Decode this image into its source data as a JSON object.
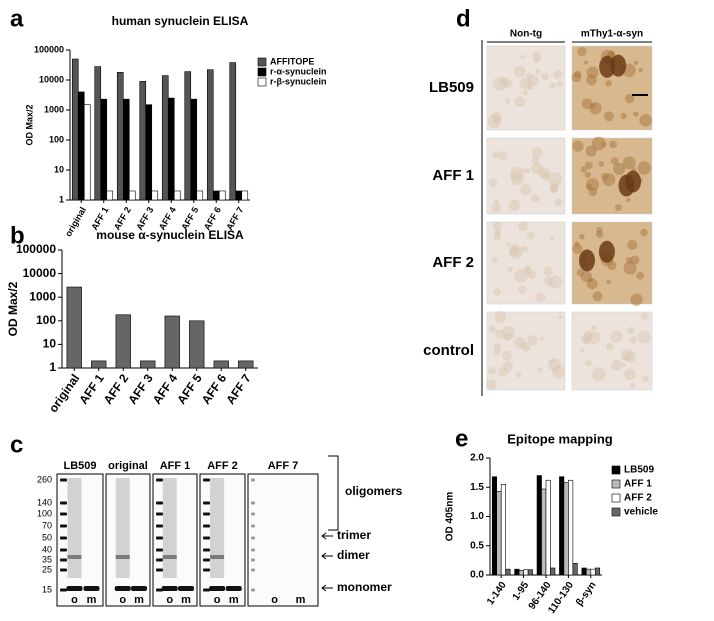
{
  "chart_data": [
    {
      "type": "bar",
      "panel": "a",
      "title": "human synuclein ELISA",
      "y_label": "OD Max/2",
      "log_scale": true,
      "categories": [
        "original",
        "AFF 1",
        "AFF 2",
        "AFF 3",
        "AFF 4",
        "AFF 5",
        "AFF 6",
        "AFF 7"
      ],
      "series": [
        {
          "name": "AFFITOPE",
          "color": "#555555",
          "values": [
            50000,
            28000,
            18000,
            9000,
            14000,
            19000,
            22000,
            38000
          ]
        },
        {
          "name": "r-α-synuclein",
          "color": "#000000",
          "values": [
            4000,
            2300,
            2300,
            1500,
            2500,
            2300,
            2,
            2
          ]
        },
        {
          "name": "r-β-synuclein",
          "color": "#ffffff",
          "values": [
            1500,
            2,
            2,
            2,
            2,
            2,
            2,
            2
          ]
        }
      ],
      "ylim": [
        1,
        100000
      ],
      "yticks": [
        1,
        10,
        100,
        1000,
        10000,
        100000
      ],
      "legend": "right"
    },
    {
      "type": "bar",
      "panel": "b",
      "title": "mouse α-synuclein ELISA",
      "y_label": "OD Max/2",
      "log_scale": true,
      "categories": [
        "original",
        "AFF 1",
        "AFF 2",
        "AFF 3",
        "AFF 4",
        "AFF 5",
        "AFF 6",
        "AFF 7"
      ],
      "series": [
        {
          "name": "",
          "color": "#666666",
          "values": [
            2700,
            2,
            180,
            2,
            160,
            100,
            2,
            2
          ]
        }
      ],
      "ylim": [
        1,
        100000
      ],
      "yticks": [
        1,
        10,
        100,
        1000,
        10000,
        100000
      ]
    },
    {
      "type": "bar",
      "panel": "e",
      "title": "Epitope mapping",
      "y_label": "OD 405nm",
      "log_scale": false,
      "categories": [
        "1-140",
        "1-95",
        "96-140",
        "110-130",
        "β-syn"
      ],
      "series": [
        {
          "name": "LB509",
          "color": "#000000",
          "values": [
            1.68,
            0.1,
            1.7,
            1.68,
            0.12
          ]
        },
        {
          "name": "AFF 1",
          "color": "#bbbbbb",
          "values": [
            1.43,
            0.08,
            1.47,
            1.58,
            0.1
          ]
        },
        {
          "name": "AFF 2",
          "color": "#ffffff",
          "values": [
            1.55,
            0.09,
            1.62,
            1.62,
            0.1
          ]
        },
        {
          "name": "vehicle",
          "color": "#666666",
          "values": [
            0.1,
            0.09,
            0.12,
            0.2,
            0.12
          ]
        }
      ],
      "ylim": [
        0,
        2
      ],
      "yticks": [
        {
          "value": 0,
          "label": "0.0"
        },
        {
          "value": 0.5,
          "label": "0.5"
        },
        {
          "value": 1,
          "label": "1.0"
        },
        {
          "value": 1.5,
          "label": "1.5"
        },
        {
          "value": 2,
          "label": "2.0"
        }
      ],
      "legend": "right"
    }
  ],
  "blot": {
    "panel": "c",
    "lanes": [
      "LB509",
      "original",
      "AFF 1",
      "AFF 2",
      "AFF 7"
    ],
    "markers": [
      260,
      140,
      100,
      70,
      50,
      40,
      35,
      25,
      15
    ],
    "sublanes": [
      "o",
      "m"
    ],
    "annotations": [
      "oligomers",
      "trimer",
      "dimer",
      "monomer"
    ]
  },
  "micrographs": {
    "panel": "d",
    "columns": [
      "Non-tg",
      "mThy1-α-syn"
    ],
    "rows": [
      "LB509",
      "AFF 1",
      "AFF 2",
      "control"
    ]
  }
}
